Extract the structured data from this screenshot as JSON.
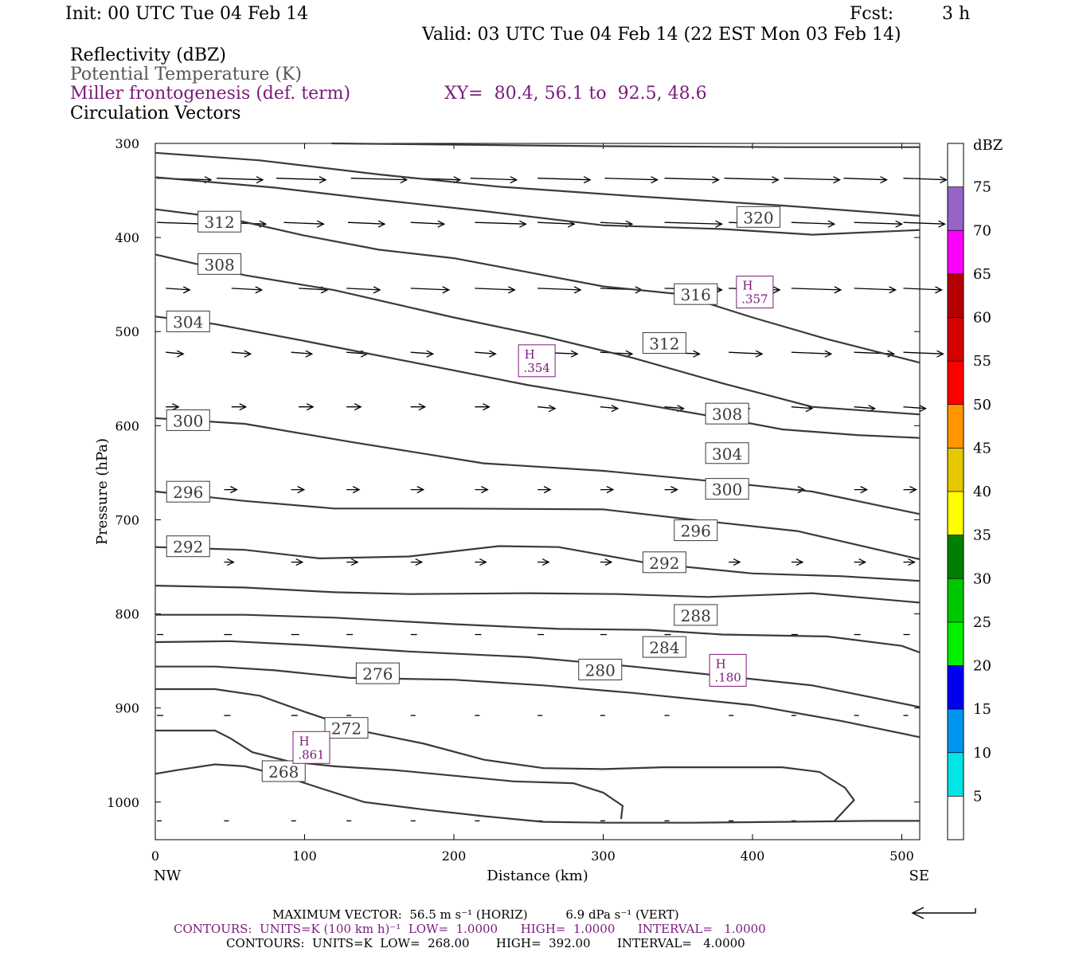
{
  "header": {
    "init": "Init: 00 UTC Tue 04 Feb 14",
    "fcst_label": "Fcst:",
    "fcst_value": "3 h",
    "valid": "Valid: 03 UTC Tue 04 Feb 14 (22 EST Mon 03 Feb 14)"
  },
  "fields": {
    "reflectivity": "Reflectivity (dBZ)",
    "theta": "Potential Temperature (K)",
    "frontogenesis": "Miller frontogenesis (def. term)",
    "xy": "XY=  80.4, 56.1 to  92.5, 48.6",
    "vectors": "Circulation Vectors"
  },
  "footer": {
    "max_vector": "MAXIMUM VECTOR:  56.5 m s⁻¹ (HORIZ)          6.9 dPa s⁻¹ (VERT)",
    "contours_front": "CONTOURS:  UNITS=K (100 km h)⁻¹  LOW=  1.0000      HIGH=  1.0000      INTERVAL=   1.0000",
    "contours_theta": "CONTOURS:  UNITS=K  LOW=  268.00       HIGH=  392.00       INTERVAL=   4.0000"
  },
  "chart_data": {
    "type": "cross-section",
    "xlabel": "Distance (km)",
    "ylabel": "Pressure (hPa)",
    "xlim": [
      0,
      512
    ],
    "ylim": [
      300,
      1040
    ],
    "x_ticks": [
      "0",
      "100",
      "200",
      "300",
      "400",
      "500"
    ],
    "x_tick_values": [
      0,
      100,
      200,
      300,
      400,
      500
    ],
    "y_ticks": [
      "300",
      "400",
      "500",
      "600",
      "700",
      "800",
      "900",
      "1000"
    ],
    "y_tick_values": [
      300,
      400,
      500,
      600,
      700,
      800,
      900,
      1000
    ],
    "x_end_labels": {
      "left": "NW",
      "right": "SE"
    },
    "colorbar": {
      "unit": "dBZ",
      "labels": [
        "5",
        "10",
        "15",
        "20",
        "25",
        "30",
        "35",
        "40",
        "45",
        "50",
        "55",
        "60",
        "65",
        "70",
        "75"
      ],
      "colors": [
        "#ffffff",
        "#00e5e5",
        "#0096f0",
        "#0000f0",
        "#00f000",
        "#00c800",
        "#008000",
        "#ffff00",
        "#e6c800",
        "#ff9600",
        "#ff0000",
        "#d70000",
        "#b40000",
        "#ff00ff",
        "#9664c8",
        "#ffffff"
      ]
    },
    "theta_contours": [
      {
        "value": 268,
        "label": "268",
        "points": [
          [
            0,
            970
          ],
          [
            15,
            966
          ],
          [
            40,
            960
          ],
          [
            60,
            962
          ],
          [
            85,
            972
          ],
          [
            110,
            985
          ],
          [
            140,
            1000
          ],
          [
            180,
            1008
          ],
          [
            220,
            1015
          ],
          [
            260,
            1021
          ],
          [
            300,
            1022
          ],
          [
            360,
            1022
          ],
          [
            420,
            1021
          ],
          [
            480,
            1020
          ],
          [
            512,
            1020
          ]
        ]
      },
      {
        "value": 272,
        "label": "272",
        "points": [
          [
            0,
            924
          ],
          [
            15,
            924
          ],
          [
            40,
            924
          ],
          [
            50,
            932
          ],
          [
            65,
            947
          ],
          [
            90,
            957
          ],
          [
            120,
            962
          ],
          [
            160,
            966
          ],
          [
            200,
            972
          ],
          [
            240,
            978
          ],
          [
            280,
            980
          ],
          [
            300,
            990
          ],
          [
            313,
            1004
          ],
          [
            312,
            1018
          ]
        ]
      },
      {
        "value": 276,
        "label": "276",
        "points": [
          [
            0,
            880
          ],
          [
            40,
            880
          ],
          [
            70,
            887
          ],
          [
            100,
            904
          ],
          [
            140,
            925
          ],
          [
            180,
            938
          ],
          [
            220,
            955
          ],
          [
            260,
            964
          ],
          [
            300,
            965
          ],
          [
            340,
            963
          ],
          [
            380,
            963
          ],
          [
            420,
            963
          ],
          [
            445,
            968
          ],
          [
            462,
            985
          ],
          [
            468,
            998
          ],
          [
            455,
            1020
          ]
        ]
      },
      {
        "value": 280,
        "label": "280",
        "points": [
          [
            0,
            856
          ],
          [
            40,
            856
          ],
          [
            80,
            860
          ],
          [
            130,
            868
          ],
          [
            200,
            870
          ],
          [
            260,
            876
          ],
          [
            320,
            884
          ],
          [
            400,
            897
          ],
          [
            460,
            914
          ],
          [
            512,
            931
          ]
        ]
      },
      {
        "value": 284,
        "label": "284",
        "points": [
          [
            0,
            830
          ],
          [
            50,
            829
          ],
          [
            100,
            833
          ],
          [
            170,
            840
          ],
          [
            250,
            846
          ],
          [
            320,
            856
          ],
          [
            380,
            866
          ],
          [
            440,
            876
          ],
          [
            512,
            899
          ]
        ]
      },
      {
        "value": 288,
        "label": "288",
        "points": [
          [
            0,
            801
          ],
          [
            60,
            801
          ],
          [
            120,
            804
          ],
          [
            200,
            811
          ],
          [
            270,
            816
          ],
          [
            330,
            817
          ],
          [
            380,
            822
          ],
          [
            450,
            824
          ],
          [
            500,
            834
          ],
          [
            512,
            841
          ]
        ]
      },
      {
        "value": 292,
        "label": "292",
        "points": [
          [
            0,
            770
          ],
          [
            60,
            772
          ],
          [
            120,
            777
          ],
          [
            170,
            779
          ],
          [
            250,
            778
          ],
          [
            310,
            779
          ],
          [
            370,
            782
          ],
          [
            440,
            778
          ],
          [
            512,
            788
          ]
        ]
      },
      {
        "value": 296,
        "label": "296",
        "points": [
          [
            0,
            729
          ],
          [
            60,
            732
          ],
          [
            110,
            741
          ],
          [
            170,
            739
          ],
          [
            230,
            728
          ],
          [
            270,
            729
          ],
          [
            330,
            746
          ],
          [
            400,
            757
          ],
          [
            460,
            760
          ],
          [
            512,
            765
          ]
        ]
      },
      {
        "value": 300,
        "label": "300",
        "points": [
          [
            0,
            670
          ],
          [
            60,
            680
          ],
          [
            120,
            688
          ],
          [
            200,
            688
          ],
          [
            300,
            689
          ],
          [
            360,
            700
          ],
          [
            430,
            712
          ],
          [
            512,
            742
          ]
        ]
      },
      {
        "value": 304,
        "label": "304",
        "points": [
          [
            0,
            592
          ],
          [
            60,
            598
          ],
          [
            130,
            617
          ],
          [
            220,
            640
          ],
          [
            300,
            648
          ],
          [
            380,
            660
          ],
          [
            440,
            670
          ],
          [
            512,
            694
          ]
        ]
      },
      {
        "value": 308,
        "label": "308",
        "points": [
          [
            0,
            484
          ],
          [
            40,
            492
          ],
          [
            100,
            510
          ],
          [
            180,
            535
          ],
          [
            250,
            557
          ],
          [
            300,
            570
          ],
          [
            380,
            592
          ],
          [
            420,
            604
          ],
          [
            470,
            610
          ],
          [
            512,
            613
          ]
        ]
      },
      {
        "value": 312,
        "label": "312",
        "points": [
          [
            0,
            418
          ],
          [
            60,
            440
          ],
          [
            120,
            456
          ],
          [
            200,
            485
          ],
          [
            260,
            505
          ],
          [
            320,
            528
          ],
          [
            380,
            555
          ],
          [
            440,
            580
          ],
          [
            512,
            588
          ]
        ]
      },
      {
        "value": 316,
        "label": "316",
        "points": [
          [
            0,
            370
          ],
          [
            50,
            380
          ],
          [
            100,
            398
          ],
          [
            150,
            413
          ],
          [
            200,
            422
          ],
          [
            250,
            437
          ],
          [
            300,
            452
          ],
          [
            350,
            460
          ],
          [
            400,
            485
          ],
          [
            450,
            508
          ],
          [
            512,
            533
          ]
        ]
      },
      {
        "value": 320,
        "label": "320",
        "points": [
          [
            0,
            336
          ],
          [
            80,
            347
          ],
          [
            150,
            360
          ],
          [
            220,
            372
          ],
          [
            300,
            387
          ],
          [
            380,
            391
          ],
          [
            440,
            397
          ],
          [
            512,
            392
          ]
        ]
      },
      {
        "value": 324,
        "label": "",
        "points": [
          [
            0,
            310
          ],
          [
            70,
            318
          ],
          [
            150,
            333
          ],
          [
            230,
            346
          ],
          [
            320,
            356
          ],
          [
            420,
            366
          ],
          [
            512,
            377
          ]
        ]
      },
      {
        "value": 328,
        "label": "",
        "points": [
          [
            118,
            300
          ],
          [
            300,
            303
          ],
          [
            420,
            304
          ],
          [
            512,
            304
          ]
        ]
      }
    ],
    "frontogenesis_maxima": [
      {
        "label": "H",
        "value": ".357",
        "x": 401,
        "p": 458
      },
      {
        "label": "H",
        "value": ".354",
        "x": 255,
        "p": 531
      },
      {
        "label": "H",
        "value": ".180",
        "x": 383,
        "p": 860
      },
      {
        "label": "H",
        "value": ".861",
        "x": 104,
        "p": 942
      }
    ],
    "vector_scale": {
      "max_horiz": 56.5,
      "max_vert": 6.9
    }
  }
}
